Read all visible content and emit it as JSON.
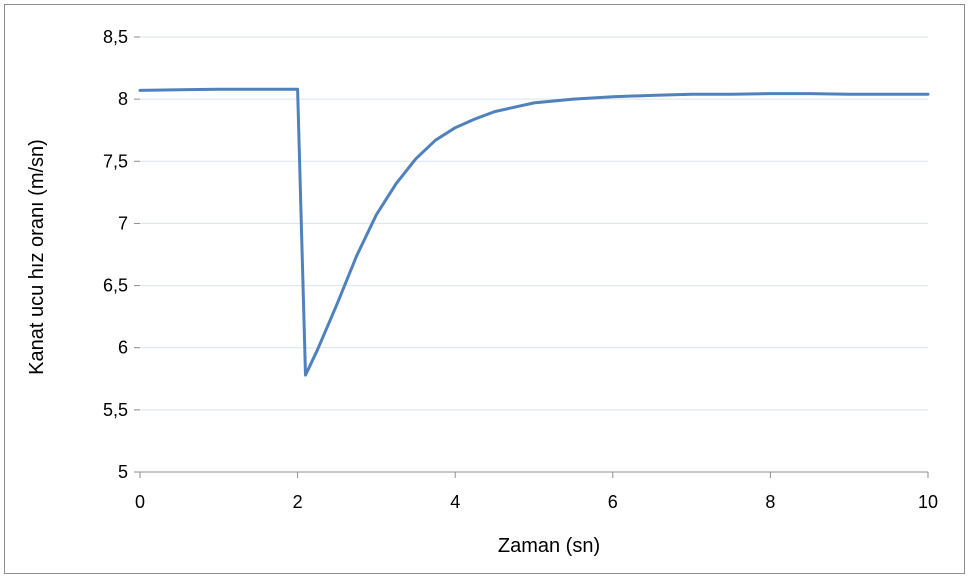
{
  "chart_data": {
    "type": "line",
    "title": "",
    "xlabel": "Zaman (sn)",
    "ylabel": "Kanat ucu hız oranı (m/sn)",
    "xlim": [
      0,
      10
    ],
    "ylim": [
      5,
      8.5
    ],
    "x_ticks": [
      0,
      2,
      4,
      6,
      8,
      10
    ],
    "y_ticks": [
      5,
      5.5,
      6,
      6.5,
      7,
      7.5,
      8,
      8.5
    ],
    "x_tick_labels": [
      "0",
      "2",
      "4",
      "6",
      "8",
      "10"
    ],
    "y_tick_labels": [
      "5",
      "5,5",
      "6",
      "6,5",
      "7",
      "7,5",
      "8",
      "8,5"
    ],
    "grid": "horizontal",
    "series_color": "#4f81bd",
    "grid_color": "#d9e3f0",
    "series": [
      {
        "x": [
          0,
          0.5,
          1,
          1.5,
          2.0,
          2.1,
          2.25,
          2.5,
          2.75,
          3.0,
          3.25,
          3.5,
          3.75,
          4.0,
          4.25,
          4.5,
          5.0,
          5.5,
          6.0,
          6.5,
          7.0,
          7.5,
          8.0,
          8.5,
          9.0,
          9.5,
          10.0
        ],
        "y": [
          8.07,
          8.075,
          8.08,
          8.08,
          8.08,
          5.78,
          5.98,
          6.35,
          6.74,
          7.07,
          7.32,
          7.52,
          7.67,
          7.77,
          7.84,
          7.9,
          7.97,
          8.0,
          8.02,
          8.03,
          8.04,
          8.04,
          8.045,
          8.045,
          8.04,
          8.04,
          8.04
        ]
      }
    ]
  }
}
